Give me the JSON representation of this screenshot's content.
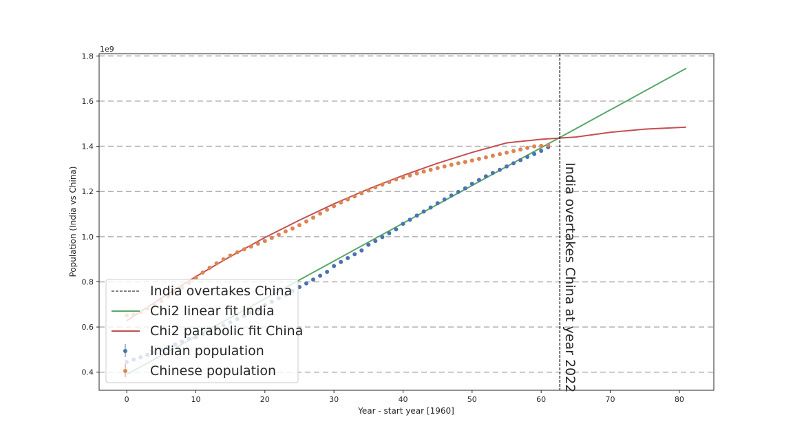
{
  "chart_data": {
    "type": "scatter",
    "title": "",
    "xlabel": "Year - start year [1960]",
    "ylabel": "Population (India vs China)",
    "y_offset_label": "1e9",
    "xlim": [
      -4,
      85
    ],
    "ylim": [
      0.32,
      1.81
    ],
    "xticks": [
      0,
      10,
      20,
      30,
      40,
      50,
      60,
      70,
      80
    ],
    "yticks": [
      0.4,
      0.6,
      0.8,
      1.0,
      1.2,
      1.4,
      1.6,
      1.8
    ],
    "grid": "horizontal dashed",
    "legend_position": "lower-left",
    "annotation": {
      "text": "India overtakes China at year 2022",
      "x": 62.7
    },
    "vline": {
      "name": "India overtakes China",
      "x": 62.7,
      "color": "#000000"
    },
    "series": [
      {
        "name": "Chi2 linear fit India",
        "kind": "line",
        "color": "#55a868",
        "x": [
          0,
          81
        ],
        "y": [
          0.39,
          1.745
        ]
      },
      {
        "name": "Chi2 parabolic fit China",
        "kind": "line",
        "color": "#c44e52",
        "x": [
          0,
          5,
          10,
          15,
          20,
          25,
          30,
          35,
          40,
          45,
          50,
          55,
          60,
          65,
          70,
          75,
          81
        ],
        "y": [
          0.628,
          0.728,
          0.823,
          0.912,
          0.996,
          1.073,
          1.145,
          1.211,
          1.271,
          1.325,
          1.373,
          1.415,
          1.431,
          1.441,
          1.462,
          1.476,
          1.485
        ]
      },
      {
        "name": "Indian population",
        "kind": "points",
        "color": "#4c72b0",
        "x": [
          0,
          1,
          2,
          3,
          4,
          5,
          6,
          7,
          8,
          9,
          10,
          11,
          12,
          13,
          14,
          15,
          16,
          17,
          18,
          19,
          20,
          21,
          22,
          23,
          24,
          25,
          26,
          27,
          28,
          29,
          30,
          31,
          32,
          33,
          34,
          35,
          36,
          37,
          38,
          39,
          40,
          41,
          42,
          43,
          44,
          45,
          46,
          47,
          48,
          49,
          50,
          51,
          52,
          53,
          54,
          55,
          56,
          57,
          58,
          59,
          60,
          61
        ],
        "y": [
          0.445,
          0.456,
          0.466,
          0.477,
          0.488,
          0.5,
          0.511,
          0.523,
          0.535,
          0.547,
          0.555,
          0.568,
          0.581,
          0.594,
          0.608,
          0.621,
          0.635,
          0.649,
          0.663,
          0.677,
          0.697,
          0.712,
          0.727,
          0.743,
          0.759,
          0.777,
          0.793,
          0.81,
          0.827,
          0.844,
          0.87,
          0.888,
          0.905,
          0.922,
          0.939,
          0.964,
          0.981,
          0.998,
          1.015,
          1.032,
          1.057,
          1.075,
          1.093,
          1.111,
          1.129,
          1.148,
          1.165,
          1.182,
          1.198,
          1.214,
          1.234,
          1.251,
          1.267,
          1.282,
          1.296,
          1.311,
          1.325,
          1.339,
          1.353,
          1.366,
          1.38,
          1.396
        ]
      },
      {
        "name": "Chinese population",
        "kind": "points",
        "color": "#dd8452",
        "x": [
          0,
          1,
          2,
          3,
          4,
          5,
          6,
          7,
          8,
          9,
          10,
          11,
          12,
          13,
          14,
          15,
          16,
          17,
          18,
          19,
          20,
          21,
          22,
          23,
          24,
          25,
          26,
          27,
          28,
          29,
          30,
          31,
          32,
          33,
          34,
          35,
          36,
          37,
          38,
          39,
          40,
          41,
          42,
          43,
          44,
          45,
          46,
          47,
          48,
          49,
          50,
          51,
          52,
          53,
          54,
          55,
          56,
          57,
          58,
          59,
          60,
          61
        ],
        "y": [
          0.651,
          0.654,
          0.666,
          0.682,
          0.698,
          0.715,
          0.735,
          0.755,
          0.775,
          0.796,
          0.818,
          0.841,
          0.862,
          0.882,
          0.9,
          0.916,
          0.931,
          0.944,
          0.956,
          0.969,
          0.981,
          0.994,
          1.009,
          1.023,
          1.036,
          1.051,
          1.067,
          1.084,
          1.102,
          1.119,
          1.135,
          1.151,
          1.165,
          1.178,
          1.192,
          1.205,
          1.218,
          1.23,
          1.242,
          1.254,
          1.262,
          1.271,
          1.28,
          1.288,
          1.296,
          1.304,
          1.311,
          1.318,
          1.325,
          1.331,
          1.337,
          1.344,
          1.351,
          1.358,
          1.365,
          1.372,
          1.379,
          1.386,
          1.393,
          1.4,
          1.402,
          1.405
        ]
      }
    ]
  }
}
